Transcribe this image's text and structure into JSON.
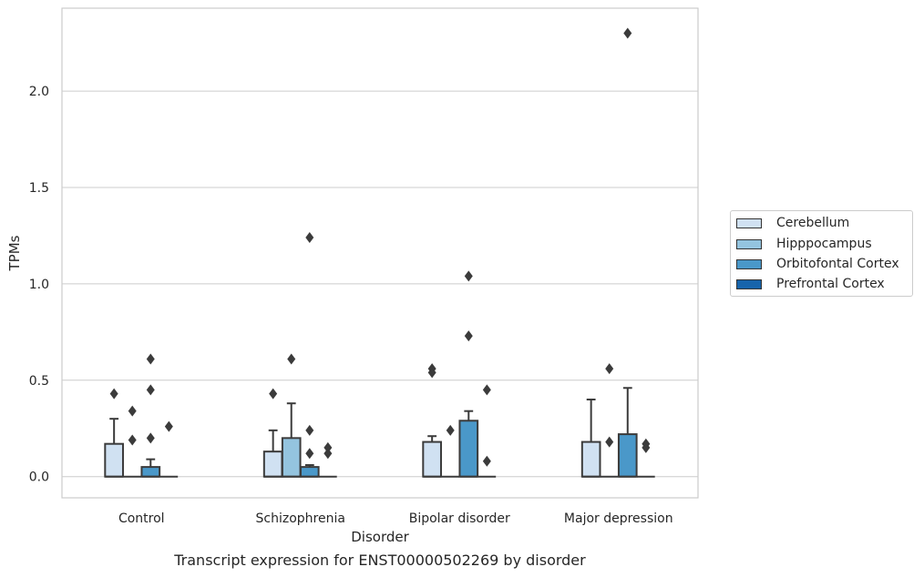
{
  "caption": "Transcript expression for ENST00000502269 by disorder",
  "chart_data": {
    "type": "box",
    "xlabel": "Disorder",
    "ylabel": "TPMs",
    "ylim": [
      -0.11,
      2.43
    ],
    "yticks": [
      0.0,
      0.5,
      1.0,
      1.5,
      2.0
    ],
    "ytick_labels": [
      "0.0",
      "0.5",
      "1.0",
      "1.5",
      "2.0"
    ],
    "grid": "horizontal",
    "legend_position": "right",
    "categories": [
      "Control",
      "Schizophrenia",
      "Bipolar disorder",
      "Major depression"
    ],
    "series": [
      {
        "name": "Cerebellum",
        "color": "#d0e1f2",
        "boxes": [
          {
            "q1": 0.0,
            "median": 0.0,
            "q3": 0.17,
            "whisker_low": 0.0,
            "whisker_high": 0.3,
            "outliers": [
              0.43
            ]
          },
          {
            "q1": 0.0,
            "median": 0.0,
            "q3": 0.13,
            "whisker_low": 0.0,
            "whisker_high": 0.24,
            "outliers": [
              0.43
            ]
          },
          {
            "q1": 0.0,
            "median": 0.0,
            "q3": 0.18,
            "whisker_low": 0.0,
            "whisker_high": 0.21,
            "outliers": [
              0.54,
              0.56
            ]
          },
          {
            "q1": 0.0,
            "median": 0.0,
            "q3": 0.18,
            "whisker_low": 0.0,
            "whisker_high": 0.4,
            "outliers": []
          }
        ]
      },
      {
        "name": "Hipppocampus",
        "color": "#94c4df",
        "boxes": [
          {
            "q1": 0.0,
            "median": 0.0,
            "q3": 0.0,
            "whisker_low": 0.0,
            "whisker_high": 0.0,
            "outliers": [
              0.19,
              0.34
            ]
          },
          {
            "q1": 0.0,
            "median": 0.0,
            "q3": 0.2,
            "whisker_low": 0.0,
            "whisker_high": 0.38,
            "outliers": [
              0.61
            ]
          },
          {
            "q1": 0.0,
            "median": 0.0,
            "q3": 0.0,
            "whisker_low": 0.0,
            "whisker_high": 0.0,
            "outliers": [
              0.24
            ]
          },
          {
            "q1": 0.0,
            "median": 0.0,
            "q3": 0.0,
            "whisker_low": 0.0,
            "whisker_high": 0.0,
            "outliers": [
              0.18,
              0.56
            ]
          }
        ]
      },
      {
        "name": "Orbitofontal Cortex",
        "color": "#4a98c9",
        "boxes": [
          {
            "q1": 0.0,
            "median": 0.0,
            "q3": 0.05,
            "whisker_low": 0.0,
            "whisker_high": 0.09,
            "outliers": [
              0.2,
              0.45,
              0.61
            ]
          },
          {
            "q1": 0.0,
            "median": 0.0,
            "q3": 0.05,
            "whisker_low": 0.0,
            "whisker_high": 0.06,
            "outliers": [
              0.12,
              0.24,
              1.24
            ]
          },
          {
            "q1": 0.0,
            "median": 0.0,
            "q3": 0.29,
            "whisker_low": 0.0,
            "whisker_high": 0.34,
            "outliers": [
              0.73,
              1.04
            ]
          },
          {
            "q1": 0.0,
            "median": 0.0,
            "q3": 0.22,
            "whisker_low": 0.0,
            "whisker_high": 0.46,
            "outliers": [
              2.3
            ]
          }
        ]
      },
      {
        "name": "Prefrontal Cortex",
        "color": "#1764ab",
        "boxes": [
          {
            "q1": 0.0,
            "median": 0.0,
            "q3": 0.0,
            "whisker_low": 0.0,
            "whisker_high": 0.0,
            "outliers": [
              0.26
            ]
          },
          {
            "q1": 0.0,
            "median": 0.0,
            "q3": 0.0,
            "whisker_low": 0.0,
            "whisker_high": 0.0,
            "outliers": [
              0.12,
              0.15
            ]
          },
          {
            "q1": 0.0,
            "median": 0.0,
            "q3": 0.0,
            "whisker_low": 0.0,
            "whisker_high": 0.0,
            "outliers": [
              0.08,
              0.45
            ]
          },
          {
            "q1": 0.0,
            "median": 0.0,
            "q3": 0.0,
            "whisker_low": 0.0,
            "whisker_high": 0.0,
            "outliers": [
              0.15,
              0.17
            ]
          }
        ]
      }
    ]
  }
}
